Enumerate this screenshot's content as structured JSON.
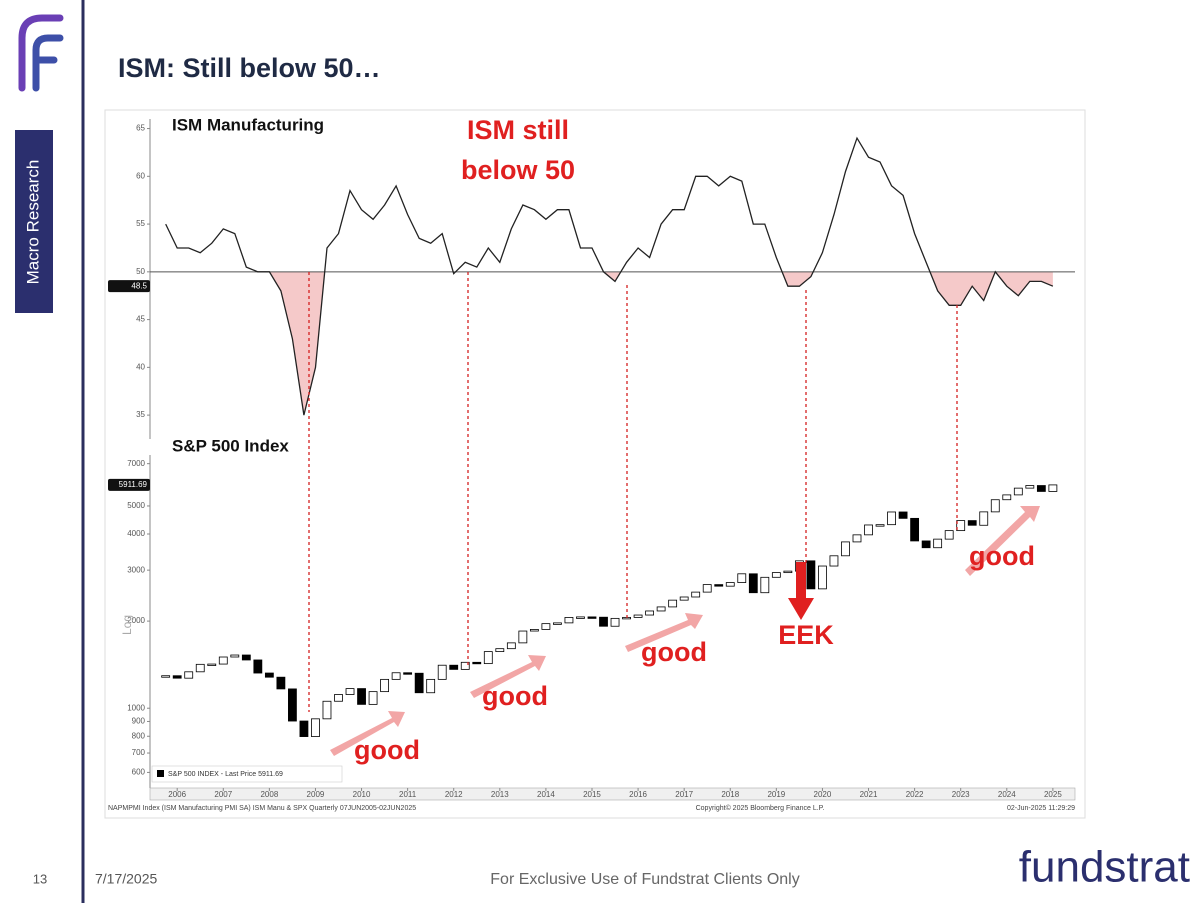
{
  "slide": {
    "title": "ISM: Still below 50…",
    "sidebar_label": "Macro Research",
    "page_number": "13",
    "date": "7/17/2025",
    "footer": "For Exclusive Use of Fundstrat Clients Only",
    "brand": "fundstrat",
    "source_left": "NAPMPMI Index (ISM Manufacturing PMI SA) ISM Manu & SPX  Quarterly 07JUN2005-02JUN2025",
    "source_center": "Copyright© 2025 Bloomberg Finance L.P.",
    "source_right": "02-Jun-2025 11:29:29"
  },
  "chart_data": [
    {
      "type": "line",
      "title": "ISM Manufacturing",
      "annotation": [
        "ISM still",
        "below 50"
      ],
      "color": "#222222",
      "shade_color": "#f5c9c9",
      "reference_line": 50,
      "xlim": [
        2005.91,
        2025.98
      ],
      "ylim": [
        32.5,
        66
      ],
      "yticks": [
        35,
        40,
        45,
        50,
        55,
        60,
        65
      ],
      "x": [
        2006.25,
        2006.5,
        2006.75,
        2007,
        2007.25,
        2007.5,
        2007.75,
        2008,
        2008.25,
        2008.5,
        2008.75,
        2009,
        2009.25,
        2009.5,
        2009.75,
        2010,
        2010.25,
        2010.5,
        2010.75,
        2011,
        2011.25,
        2011.5,
        2011.75,
        2012,
        2012.25,
        2012.5,
        2012.75,
        2013,
        2013.25,
        2013.5,
        2013.75,
        2014,
        2014.25,
        2014.5,
        2014.75,
        2015,
        2015.25,
        2015.5,
        2015.75,
        2016,
        2016.25,
        2016.5,
        2016.75,
        2017,
        2017.25,
        2017.5,
        2017.75,
        2018,
        2018.25,
        2018.5,
        2018.75,
        2019,
        2019.25,
        2019.5,
        2019.75,
        2020,
        2020.25,
        2020.5,
        2020.75,
        2021,
        2021.25,
        2021.5,
        2021.75,
        2022,
        2022.25,
        2022.5,
        2022.75,
        2023,
        2023.25,
        2023.5,
        2023.75,
        2024,
        2024.25,
        2024.5,
        2024.75,
        2025,
        2025.25,
        2025.5
      ],
      "values": [
        55,
        52.5,
        52.5,
        52,
        53,
        54.5,
        54,
        50.5,
        50,
        50,
        48,
        43,
        35,
        40,
        52.5,
        54,
        58.5,
        56.5,
        55.5,
        57,
        59,
        56,
        53.5,
        53,
        54,
        49.8,
        51,
        50.5,
        52.5,
        51,
        54.5,
        57,
        56.5,
        55.5,
        56.5,
        56.5,
        52.5,
        52.5,
        50,
        49,
        51,
        52.5,
        51.5,
        55,
        56.5,
        56.5,
        60,
        60,
        59,
        60,
        59.5,
        55,
        55,
        51.5,
        48.5,
        48.5,
        49.5,
        52,
        56,
        60.5,
        64,
        62,
        61.5,
        59,
        58,
        54,
        51,
        48,
        46.5,
        46.5,
        48.5,
        47,
        50,
        48.5,
        47.5,
        49,
        49,
        48.5
      ]
    },
    {
      "type": "candlestick",
      "title": "S&P 500 Index",
      "name": "S&P 500 INDEX - Last Price 5911.69",
      "y_label": "Log",
      "log_scale": true,
      "up_color": "#ffffff",
      "down_color": "#000000",
      "annotations": [
        "good",
        "good",
        "good",
        "EEK",
        "good"
      ],
      "xlim": [
        2005.91,
        2025.98
      ],
      "xticks": [
        {
          "value": 2006.5,
          "label": "2006"
        },
        {
          "value": 2007.5,
          "label": "2007"
        },
        {
          "value": 2008.5,
          "label": "2008"
        },
        {
          "value": 2009.5,
          "label": "2009"
        },
        {
          "value": 2010.5,
          "label": "2010"
        },
        {
          "value": 2011.5,
          "label": "2011"
        },
        {
          "value": 2012.5,
          "label": "2012"
        },
        {
          "value": 2013.5,
          "label": "2013"
        },
        {
          "value": 2014.5,
          "label": "2014"
        },
        {
          "value": 2015.5,
          "label": "2015"
        },
        {
          "value": 2016.5,
          "label": "2016"
        },
        {
          "value": 2017.5,
          "label": "2017"
        },
        {
          "value": 2018.5,
          "label": "2018"
        },
        {
          "value": 2019.5,
          "label": "2019"
        },
        {
          "value": 2020.5,
          "label": "2020"
        },
        {
          "value": 2021.5,
          "label": "2021"
        },
        {
          "value": 2022.5,
          "label": "2022"
        },
        {
          "value": 2023.5,
          "label": "2023"
        },
        {
          "value": 2024.5,
          "label": "2024"
        },
        {
          "value": 2025.5,
          "label": "2025"
        }
      ],
      "ylim": [
        530,
        7500
      ],
      "yticks": [
        600,
        700,
        800,
        900,
        1000,
        2000,
        3000,
        4000,
        5000,
        7000
      ],
      "x": [
        2006.25,
        2006.5,
        2006.75,
        2007,
        2007.25,
        2007.5,
        2007.75,
        2008,
        2008.25,
        2008.5,
        2008.75,
        2009,
        2009.25,
        2009.5,
        2009.75,
        2010,
        2010.25,
        2010.5,
        2010.75,
        2011,
        2011.25,
        2011.5,
        2011.75,
        2012,
        2012.25,
        2012.5,
        2012.75,
        2013,
        2013.25,
        2013.5,
        2013.75,
        2014,
        2014.25,
        2014.5,
        2014.75,
        2015,
        2015.25,
        2015.5,
        2015.75,
        2016,
        2016.25,
        2016.5,
        2016.75,
        2017,
        2017.25,
        2017.5,
        2017.75,
        2018,
        2018.25,
        2018.5,
        2018.75,
        2019,
        2019.25,
        2019.5,
        2019.75,
        2020,
        2020.25,
        2020.5,
        2020.75,
        2021,
        2021.25,
        2021.5,
        2021.75,
        2022,
        2022.25,
        2022.5,
        2022.75,
        2023,
        2023.25,
        2023.5,
        2023.75,
        2024,
        2024.25,
        2024.5,
        2024.75,
        2025,
        2025.25,
        2025.5
      ],
      "values": [
        1295,
        1270,
        1336,
        1418,
        1421,
        1503,
        1527,
        1468,
        1323,
        1280,
        1166,
        903,
        798,
        919,
        1057,
        1115,
        1169,
        1031,
        1141,
        1258,
        1326,
        1321,
        1131,
        1258,
        1408,
        1362,
        1441,
        1426,
        1569,
        1606,
        1682,
        1848,
        1872,
        1960,
        1972,
        2059,
        2068,
        2063,
        1920,
        2044,
        2060,
        2099,
        2168,
        2239,
        2363,
        2423,
        2519,
        2674,
        2641,
        2718,
        2914,
        2507,
        2834,
        2942,
        2977,
        3231,
        2585,
        3100,
        3363,
        3756,
        3973,
        4298,
        4308,
        4766,
        4530,
        3785,
        3586,
        3840,
        4109,
        4450,
        4288,
        4770,
        5254,
        5460,
        5762,
        5882,
        5612,
        5911.69
      ]
    }
  ]
}
